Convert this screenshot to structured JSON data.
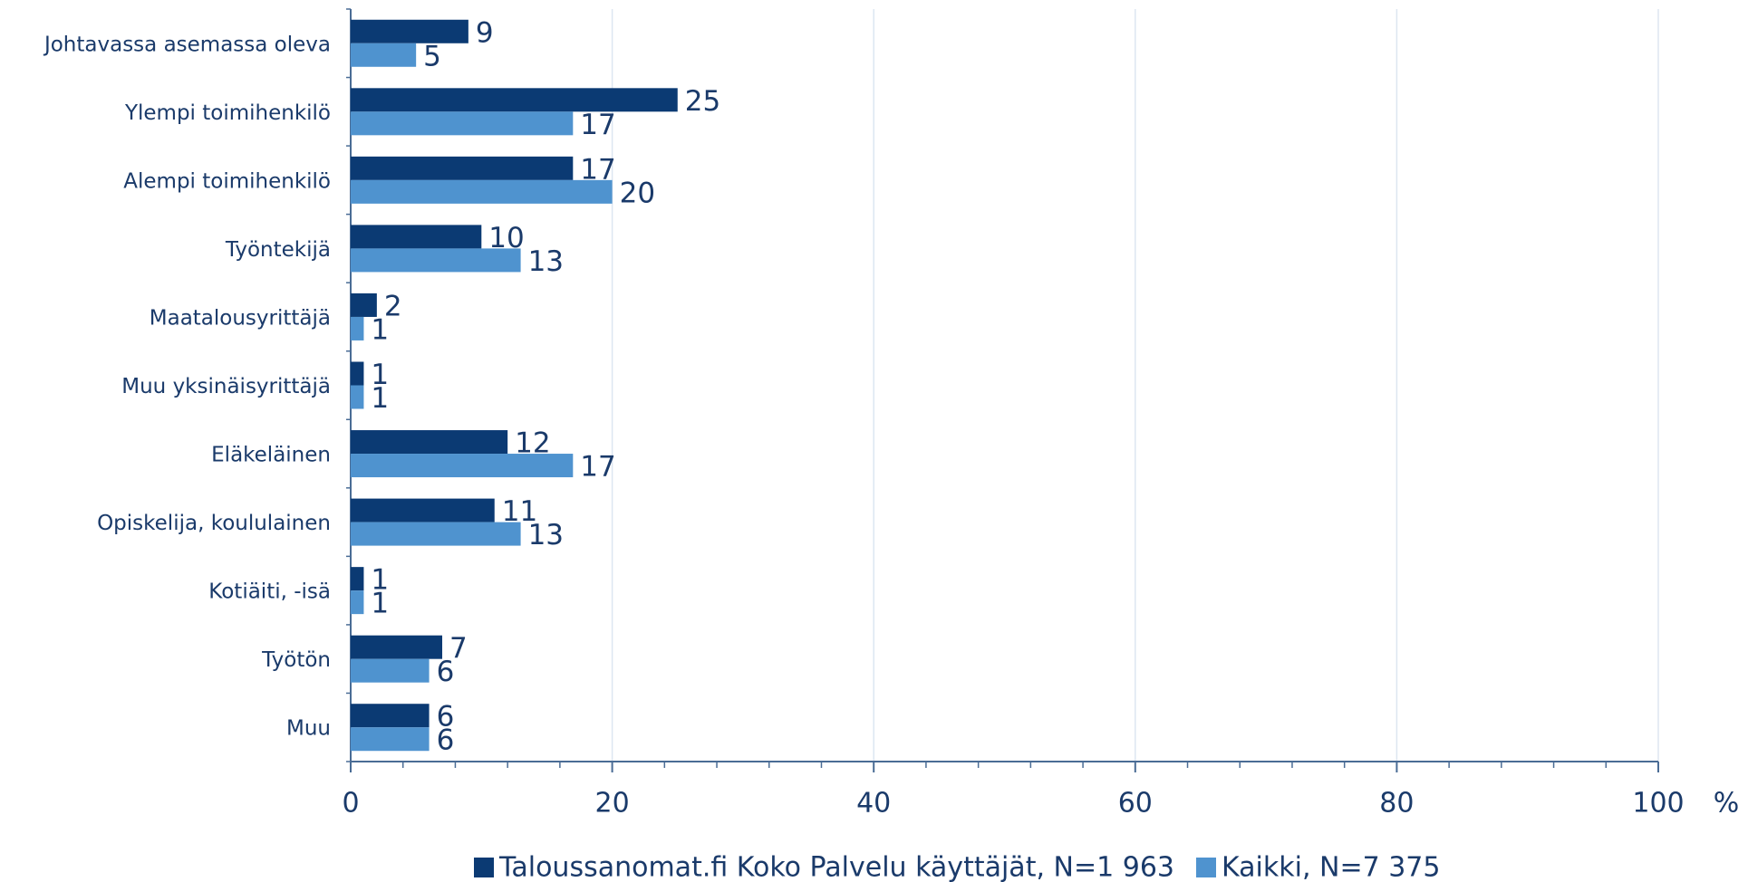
{
  "chart_data": {
    "type": "bar",
    "orientation": "horizontal",
    "categories": [
      "Johtavassa asemassa oleva",
      "Ylempi toimihenkilö",
      "Alempi toimihenkilö",
      "Työntekijä",
      "Maatalousyrittäjä",
      "Muu yksinäisyrittäjä",
      "Eläkeläinen",
      "Opiskelija, koululainen",
      "Kotiäiti, -isä",
      "Työtön",
      "Muu"
    ],
    "series": [
      {
        "name": "Taloussanomat.fi Koko Palvelu käyttäjät, N=1 963",
        "color": "#0b3a73",
        "values": [
          9,
          25,
          17,
          10,
          2,
          1,
          12,
          11,
          1,
          7,
          6
        ]
      },
      {
        "name": "Kaikki, N=7 375",
        "color": "#4f93cf",
        "values": [
          5,
          17,
          20,
          13,
          1,
          1,
          17,
          13,
          1,
          6,
          6
        ]
      }
    ],
    "xlabel": "%",
    "xlim": [
      0,
      100
    ],
    "xticks": [
      0,
      20,
      40,
      60,
      80,
      100
    ],
    "xminorticks": [
      4,
      8,
      12,
      16,
      24,
      28,
      32,
      36,
      44,
      48,
      52,
      56,
      64,
      68,
      72,
      76,
      84,
      88,
      92,
      96
    ],
    "grid": true,
    "legend": "bottom"
  }
}
